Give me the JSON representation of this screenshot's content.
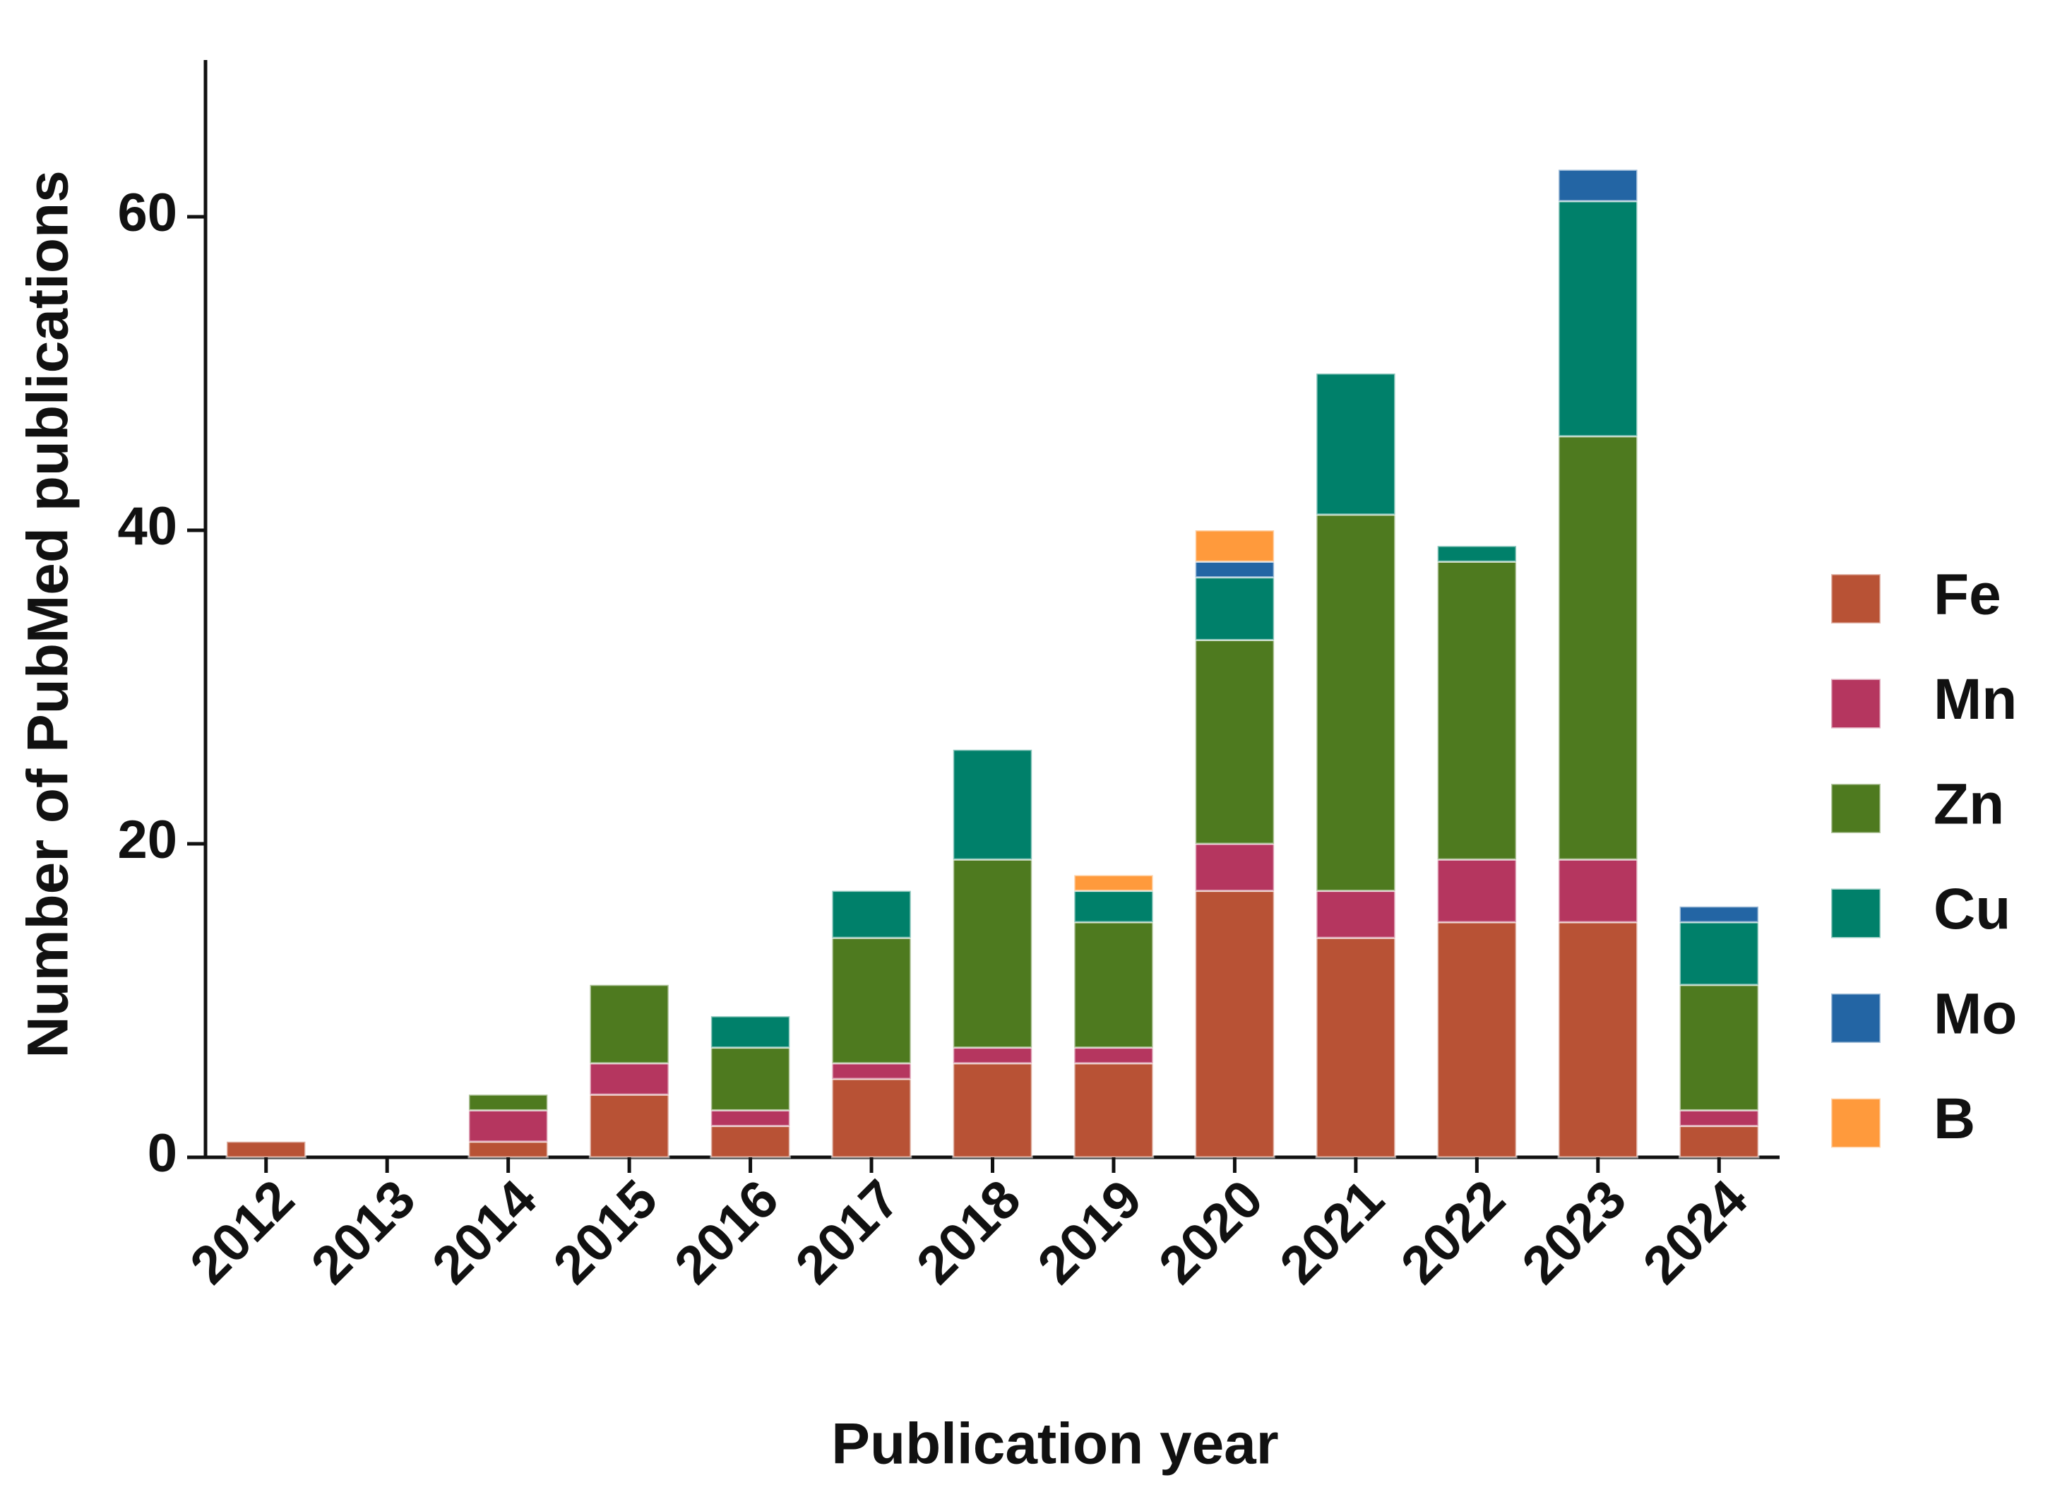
{
  "chart_data": {
    "type": "stacked_bar",
    "x_label": "Publication year",
    "y_label": "Number of PubMed publications",
    "categories": [
      "2012",
      "2013",
      "2014",
      "2015",
      "2016",
      "2017",
      "2018",
      "2019",
      "2020",
      "2021",
      "2022",
      "2023",
      "2024"
    ],
    "series": [
      {
        "name": "Fe",
        "color": "#b85235",
        "values": [
          1,
          0,
          1,
          4,
          2,
          5,
          6,
          6,
          17,
          14,
          15,
          15,
          2
        ]
      },
      {
        "name": "Mn",
        "color": "#b5365f",
        "values": [
          0,
          0,
          2,
          2,
          1,
          1,
          1,
          1,
          3,
          3,
          4,
          4,
          1
        ]
      },
      {
        "name": "Zn",
        "color": "#4e7a1f",
        "values": [
          0,
          0,
          1,
          5,
          4,
          8,
          12,
          8,
          13,
          24,
          19,
          27,
          8
        ]
      },
      {
        "name": "Cu",
        "color": "#00806a",
        "values": [
          0,
          0,
          0,
          0,
          2,
          3,
          7,
          2,
          4,
          9,
          1,
          15,
          4
        ]
      },
      {
        "name": "Mo",
        "color": "#2365a4",
        "values": [
          0,
          0,
          0,
          0,
          0,
          0,
          0,
          0,
          1,
          0,
          0,
          2,
          1
        ]
      },
      {
        "name": "B",
        "color": "#ff9a3c",
        "values": [
          0,
          0,
          0,
          0,
          0,
          0,
          0,
          1,
          2,
          0,
          0,
          0,
          0
        ]
      }
    ],
    "ylim": [
      0,
      70
    ],
    "yticks": [
      0,
      20,
      40,
      60
    ],
    "legend": "right"
  }
}
